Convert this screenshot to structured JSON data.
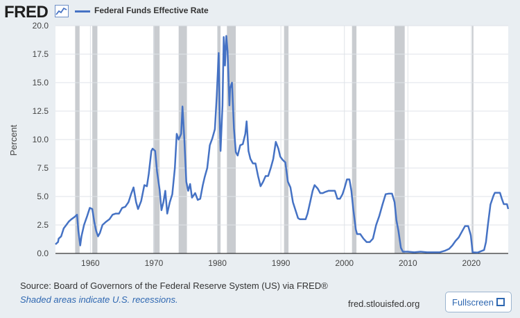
{
  "header": {
    "logo_text": "FRED",
    "logo_icon": "trend-line-icon",
    "series_label": "Federal Funds Effective Rate",
    "series_color": "#4572c4"
  },
  "footer": {
    "source_text": "Source: Board of Governors of the Federal Reserve System (US) via FRED®",
    "shaded_note": "Shaded areas indicate U.S. recessions.",
    "site_url": "fred.stlouisfed.org",
    "fullscreen_label": "Fullscreen",
    "fullscreen_icon": "expand-corners-icon"
  },
  "chart_data": {
    "type": "line",
    "title": "",
    "xlabel": "",
    "ylabel": "Percent",
    "xlim": [
      1954.5,
      2025.8
    ],
    "ylim": [
      0,
      20
    ],
    "xticks": [
      "1960",
      "1970",
      "1980",
      "1990",
      "2000",
      "2010",
      "2020"
    ],
    "yticks": [
      "0.0",
      "2.5",
      "5.0",
      "7.5",
      "10.0",
      "12.5",
      "15.0",
      "17.5",
      "20.0"
    ],
    "grid": true,
    "legend": "top-left",
    "recession_color": "#c9ccd0",
    "recessions": [
      [
        1957.6,
        1958.3
      ],
      [
        1960.3,
        1961.1
      ],
      [
        1969.9,
        1970.9
      ],
      [
        1973.9,
        1975.2
      ],
      [
        1980.0,
        1980.5
      ],
      [
        1981.5,
        1982.9
      ],
      [
        1990.5,
        1991.2
      ],
      [
        2001.2,
        2001.9
      ],
      [
        2007.9,
        2009.5
      ],
      [
        2020.1,
        2020.3
      ]
    ],
    "series": [
      {
        "name": "Federal Funds Effective Rate",
        "points": [
          [
            1954.5,
            0.8
          ],
          [
            1954.9,
            1.0
          ],
          [
            1955.0,
            1.3
          ],
          [
            1955.4,
            1.5
          ],
          [
            1955.8,
            2.2
          ],
          [
            1956.2,
            2.5
          ],
          [
            1956.6,
            2.8
          ],
          [
            1957.0,
            3.0
          ],
          [
            1957.5,
            3.2
          ],
          [
            1957.9,
            3.4
          ],
          [
            1958.1,
            2.0
          ],
          [
            1958.4,
            0.7
          ],
          [
            1958.6,
            1.5
          ],
          [
            1959.0,
            2.5
          ],
          [
            1959.5,
            3.3
          ],
          [
            1959.9,
            4.0
          ],
          [
            1960.3,
            3.9
          ],
          [
            1960.6,
            2.8
          ],
          [
            1960.9,
            2.0
          ],
          [
            1961.2,
            1.5
          ],
          [
            1961.5,
            1.8
          ],
          [
            1961.9,
            2.5
          ],
          [
            1962.5,
            2.8
          ],
          [
            1963.0,
            3.0
          ],
          [
            1963.5,
            3.4
          ],
          [
            1964.0,
            3.5
          ],
          [
            1964.5,
            3.5
          ],
          [
            1965.0,
            4.0
          ],
          [
            1965.5,
            4.1
          ],
          [
            1966.0,
            4.5
          ],
          [
            1966.4,
            5.2
          ],
          [
            1966.8,
            5.8
          ],
          [
            1967.2,
            4.5
          ],
          [
            1967.5,
            3.9
          ],
          [
            1968.0,
            4.6
          ],
          [
            1968.5,
            6.0
          ],
          [
            1968.9,
            5.9
          ],
          [
            1969.2,
            7.0
          ],
          [
            1969.6,
            9.0
          ],
          [
            1969.8,
            9.2
          ],
          [
            1970.2,
            9.0
          ],
          [
            1970.5,
            7.2
          ],
          [
            1970.9,
            5.6
          ],
          [
            1971.2,
            3.8
          ],
          [
            1971.5,
            4.5
          ],
          [
            1971.8,
            5.5
          ],
          [
            1972.1,
            3.5
          ],
          [
            1972.5,
            4.5
          ],
          [
            1972.9,
            5.2
          ],
          [
            1973.3,
            7.5
          ],
          [
            1973.6,
            10.5
          ],
          [
            1973.9,
            10.0
          ],
          [
            1974.3,
            10.5
          ],
          [
            1974.5,
            12.9
          ],
          [
            1974.8,
            10.0
          ],
          [
            1975.1,
            6.3
          ],
          [
            1975.4,
            5.5
          ],
          [
            1975.7,
            6.1
          ],
          [
            1976.0,
            4.9
          ],
          [
            1976.5,
            5.3
          ],
          [
            1976.9,
            4.7
          ],
          [
            1977.3,
            4.8
          ],
          [
            1977.7,
            6.0
          ],
          [
            1978.0,
            6.7
          ],
          [
            1978.4,
            7.5
          ],
          [
            1978.8,
            9.5
          ],
          [
            1979.2,
            10.1
          ],
          [
            1979.6,
            10.9
          ],
          [
            1979.9,
            13.8
          ],
          [
            1980.2,
            17.6
          ],
          [
            1980.4,
            11.0
          ],
          [
            1980.5,
            9.0
          ],
          [
            1980.8,
            13.0
          ],
          [
            1981.0,
            19.0
          ],
          [
            1981.2,
            16.5
          ],
          [
            1981.4,
            19.1
          ],
          [
            1981.6,
            17.8
          ],
          [
            1981.9,
            13.0
          ],
          [
            1982.0,
            14.5
          ],
          [
            1982.3,
            15.0
          ],
          [
            1982.6,
            11.0
          ],
          [
            1982.9,
            8.9
          ],
          [
            1983.2,
            8.6
          ],
          [
            1983.6,
            9.5
          ],
          [
            1984.0,
            9.6
          ],
          [
            1984.4,
            10.5
          ],
          [
            1984.6,
            11.6
          ],
          [
            1984.9,
            9.0
          ],
          [
            1985.2,
            8.3
          ],
          [
            1985.6,
            7.9
          ],
          [
            1986.0,
            7.9
          ],
          [
            1986.4,
            6.8
          ],
          [
            1986.8,
            5.9
          ],
          [
            1987.2,
            6.3
          ],
          [
            1987.6,
            6.8
          ],
          [
            1988.0,
            6.8
          ],
          [
            1988.4,
            7.5
          ],
          [
            1988.8,
            8.3
          ],
          [
            1989.2,
            9.8
          ],
          [
            1989.6,
            9.2
          ],
          [
            1989.9,
            8.5
          ],
          [
            1990.3,
            8.2
          ],
          [
            1990.7,
            8.0
          ],
          [
            1991.1,
            6.3
          ],
          [
            1991.5,
            5.8
          ],
          [
            1991.9,
            4.5
          ],
          [
            1992.3,
            3.8
          ],
          [
            1992.7,
            3.1
          ],
          [
            1993.0,
            3.0
          ],
          [
            1993.5,
            3.0
          ],
          [
            1993.9,
            3.0
          ],
          [
            1994.2,
            3.5
          ],
          [
            1994.6,
            4.5
          ],
          [
            1995.0,
            5.5
          ],
          [
            1995.3,
            6.0
          ],
          [
            1995.8,
            5.7
          ],
          [
            1996.2,
            5.3
          ],
          [
            1996.6,
            5.3
          ],
          [
            1997.0,
            5.4
          ],
          [
            1997.5,
            5.5
          ],
          [
            1998.0,
            5.5
          ],
          [
            1998.5,
            5.5
          ],
          [
            1998.9,
            4.8
          ],
          [
            1999.3,
            4.8
          ],
          [
            1999.7,
            5.2
          ],
          [
            2000.0,
            5.7
          ],
          [
            2000.4,
            6.5
          ],
          [
            2000.8,
            6.5
          ],
          [
            2001.1,
            5.5
          ],
          [
            2001.4,
            3.9
          ],
          [
            2001.8,
            2.1
          ],
          [
            2002.0,
            1.7
          ],
          [
            2002.5,
            1.7
          ],
          [
            2003.0,
            1.3
          ],
          [
            2003.5,
            1.0
          ],
          [
            2004.0,
            1.0
          ],
          [
            2004.5,
            1.3
          ],
          [
            2005.0,
            2.5
          ],
          [
            2005.5,
            3.3
          ],
          [
            2006.0,
            4.3
          ],
          [
            2006.5,
            5.2
          ],
          [
            2007.0,
            5.25
          ],
          [
            2007.5,
            5.25
          ],
          [
            2007.9,
            4.5
          ],
          [
            2008.2,
            2.9
          ],
          [
            2008.5,
            2.0
          ],
          [
            2008.9,
            0.5
          ],
          [
            2009.2,
            0.15
          ],
          [
            2010.0,
            0.15
          ],
          [
            2011.0,
            0.1
          ],
          [
            2012.0,
            0.15
          ],
          [
            2013.0,
            0.1
          ],
          [
            2014.0,
            0.1
          ],
          [
            2015.0,
            0.1
          ],
          [
            2015.9,
            0.25
          ],
          [
            2016.5,
            0.4
          ],
          [
            2017.0,
            0.7
          ],
          [
            2017.5,
            1.1
          ],
          [
            2018.0,
            1.4
          ],
          [
            2018.5,
            1.9
          ],
          [
            2019.0,
            2.4
          ],
          [
            2019.5,
            2.4
          ],
          [
            2019.9,
            1.6
          ],
          [
            2020.2,
            0.1
          ],
          [
            2021.0,
            0.08
          ],
          [
            2022.0,
            0.3
          ],
          [
            2022.3,
            1.0
          ],
          [
            2022.6,
            2.5
          ],
          [
            2023.0,
            4.3
          ],
          [
            2023.5,
            5.1
          ],
          [
            2023.7,
            5.33
          ],
          [
            2024.5,
            5.33
          ],
          [
            2024.8,
            4.8
          ],
          [
            2025.1,
            4.33
          ],
          [
            2025.6,
            4.33
          ],
          [
            2025.8,
            3.9
          ]
        ]
      }
    ]
  }
}
